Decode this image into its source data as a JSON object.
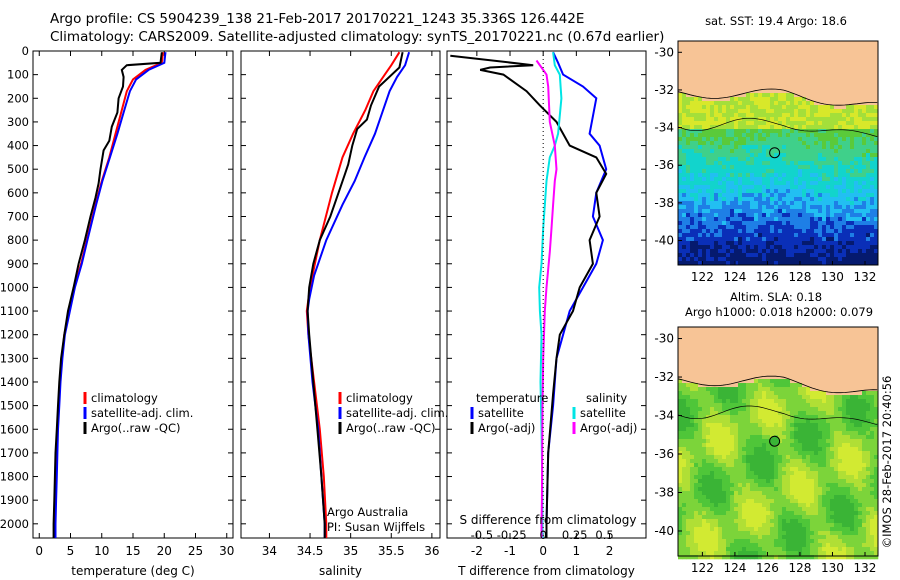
{
  "header": {
    "line1": "Argo profile: CS 5904239_138 21-Feb-2017 20170221_1243 35.336S 126.442E",
    "line2": "Climatology: CARS2009. Satellite-adjusted climatology: synTS_20170221.nc (0.67d earlier)"
  },
  "colors": {
    "climatology": "#ff0000",
    "satellite": "#0000ff",
    "argo": "#000000",
    "temperature_satellite": "#0000ff",
    "temperature_argo": "#000000",
    "salinity_satellite": "#00e5e5",
    "salinity_argo": "#ff00ff",
    "land": "#f7c496"
  },
  "chart_data": [
    {
      "type": "line",
      "id": "temperature",
      "xlabel": "temperature (deg C)",
      "xlim": [
        -1,
        31
      ],
      "ylim": [
        2060,
        0
      ],
      "xticks": [
        "0",
        "5",
        "10",
        "15",
        "20",
        "25",
        "30"
      ],
      "yticks": [
        "0",
        "100",
        "200",
        "300",
        "400",
        "500",
        "600",
        "700",
        "800",
        "900",
        "1000",
        "1100",
        "1200",
        "1300",
        "1400",
        "1500",
        "1600",
        "1700",
        "1800",
        "1900",
        "2000"
      ],
      "legend": [
        "climatology",
        "satellite-adj. clim.",
        "Argo(..raw -QC)"
      ],
      "series": [
        {
          "name": "climatology",
          "color": "#ff0000",
          "points": [
            [
              19.8,
              5
            ],
            [
              19.6,
              50
            ],
            [
              17,
              80
            ],
            [
              15,
              120
            ],
            [
              14,
              170
            ],
            [
              13.2,
              250
            ],
            [
              12.2,
              350
            ],
            [
              11.2,
              450
            ],
            [
              10,
              550
            ],
            [
              9,
              650
            ],
            [
              7.6,
              800
            ],
            [
              6.7,
              900
            ],
            [
              5.6,
              1000
            ],
            [
              4.8,
              1100
            ],
            [
              4,
              1200
            ],
            [
              3.6,
              1300
            ],
            [
              3.3,
              1400
            ],
            [
              3.1,
              1500
            ],
            [
              2.9,
              1600
            ],
            [
              2.8,
              1700
            ],
            [
              2.7,
              1800
            ],
            [
              2.6,
              1900
            ],
            [
              2.5,
              2000
            ],
            [
              2.5,
              2060
            ]
          ]
        },
        {
          "name": "satellite-adj. clim.",
          "color": "#0000ff",
          "points": [
            [
              20.2,
              5
            ],
            [
              20,
              50
            ],
            [
              17.5,
              80
            ],
            [
              15.5,
              120
            ],
            [
              14.5,
              170
            ],
            [
              13.6,
              250
            ],
            [
              12.5,
              350
            ],
            [
              11.3,
              450
            ],
            [
              10.1,
              550
            ],
            [
              9.1,
              650
            ],
            [
              7.7,
              800
            ],
            [
              6.8,
              900
            ],
            [
              5.7,
              1000
            ],
            [
              4.9,
              1100
            ],
            [
              4.1,
              1200
            ],
            [
              3.7,
              1300
            ],
            [
              3.4,
              1400
            ],
            [
              3.2,
              1500
            ],
            [
              3,
              1600
            ],
            [
              2.9,
              1700
            ],
            [
              2.8,
              1800
            ],
            [
              2.7,
              1900
            ],
            [
              2.6,
              2000
            ],
            [
              2.6,
              2060
            ]
          ]
        },
        {
          "name": "Argo(..raw -QC)",
          "color": "#000000",
          "points": [
            [
              19.6,
              5
            ],
            [
              19.4,
              50
            ],
            [
              14,
              60
            ],
            [
              13.2,
              80
            ],
            [
              13.5,
              110
            ],
            [
              13.4,
              150
            ],
            [
              12.7,
              200
            ],
            [
              12.5,
              260
            ],
            [
              11.6,
              320
            ],
            [
              11.2,
              380
            ],
            [
              10.3,
              420
            ],
            [
              9.8,
              500
            ],
            [
              9.5,
              560
            ],
            [
              9,
              620
            ],
            [
              8.2,
              700
            ],
            [
              7.3,
              800
            ],
            [
              6.3,
              900
            ],
            [
              5.5,
              1000
            ],
            [
              4.6,
              1100
            ],
            [
              4,
              1200
            ],
            [
              3.5,
              1300
            ],
            [
              3.2,
              1400
            ],
            [
              3,
              1500
            ],
            [
              2.8,
              1600
            ],
            [
              2.6,
              1700
            ],
            [
              2.5,
              1800
            ],
            [
              2.4,
              1900
            ],
            [
              2.3,
              2000
            ],
            [
              2.3,
              2060
            ]
          ]
        }
      ]
    },
    {
      "type": "line",
      "id": "salinity",
      "xlabel": "salinity",
      "xlim": [
        33.65,
        36.1
      ],
      "ylim": [
        2060,
        0
      ],
      "xticks": [
        "34",
        "34.5",
        "35",
        "35.5",
        "36"
      ],
      "legend": [
        "climatology",
        "satellite-adj. clim.",
        "Argo(..raw -QC)"
      ],
      "annotation": [
        "Argo Australia",
        "PI: Susan Wijffels"
      ],
      "series": [
        {
          "name": "climatology",
          "color": "#ff0000",
          "points": [
            [
              35.6,
              5
            ],
            [
              35.5,
              60
            ],
            [
              35.42,
              100
            ],
            [
              35.28,
              170
            ],
            [
              35.18,
              250
            ],
            [
              35.03,
              350
            ],
            [
              34.9,
              450
            ],
            [
              34.77,
              600
            ],
            [
              34.62,
              800
            ],
            [
              34.5,
              1000
            ],
            [
              34.46,
              1100
            ],
            [
              34.48,
              1200
            ],
            [
              34.55,
              1400
            ],
            [
              34.62,
              1600
            ],
            [
              34.67,
              1800
            ],
            [
              34.7,
              2000
            ],
            [
              34.7,
              2060
            ]
          ]
        },
        {
          "name": "satellite-adj. clim.",
          "color": "#0000ff",
          "points": [
            [
              35.72,
              5
            ],
            [
              35.67,
              60
            ],
            [
              35.57,
              110
            ],
            [
              35.48,
              170
            ],
            [
              35.4,
              250
            ],
            [
              35.3,
              350
            ],
            [
              35.17,
              450
            ],
            [
              35.05,
              550
            ],
            [
              34.9,
              650
            ],
            [
              34.7,
              800
            ],
            [
              34.55,
              950
            ],
            [
              34.49,
              1050
            ],
            [
              34.47,
              1100
            ],
            [
              34.48,
              1200
            ],
            [
              34.53,
              1400
            ],
            [
              34.6,
              1600
            ],
            [
              34.64,
              1800
            ],
            [
              34.68,
              2000
            ],
            [
              34.68,
              2060
            ]
          ]
        },
        {
          "name": "Argo(..raw -QC)",
          "color": "#000000",
          "points": [
            [
              35.64,
              5
            ],
            [
              35.6,
              70
            ],
            [
              35.35,
              150
            ],
            [
              35.25,
              230
            ],
            [
              35.2,
              290
            ],
            [
              35.08,
              330
            ],
            [
              35.02,
              400
            ],
            [
              34.97,
              480
            ],
            [
              34.93,
              520
            ],
            [
              34.85,
              600
            ],
            [
              34.75,
              700
            ],
            [
              34.62,
              800
            ],
            [
              34.54,
              900
            ],
            [
              34.49,
              1000
            ],
            [
              34.47,
              1100
            ],
            [
              34.49,
              1200
            ],
            [
              34.54,
              1400
            ],
            [
              34.59,
              1600
            ],
            [
              34.64,
              1800
            ],
            [
              34.68,
              2000
            ],
            [
              34.68,
              2060
            ]
          ]
        }
      ]
    },
    {
      "type": "line",
      "id": "differences",
      "xlabel": "T difference from climatology",
      "xlabel_top": "S difference from climatology",
      "xlim": [
        -2.9,
        3.1
      ],
      "ylim": [
        2060,
        0
      ],
      "xticks": [
        "-2",
        "-1",
        "0",
        "1",
        "2"
      ],
      "xticks_top": [
        "-0.5",
        "-0.25",
        "0",
        "0.25",
        "0.5"
      ],
      "legend_temperature": {
        "title": "temperature",
        "items": [
          "satellite",
          "Argo(-adj)"
        ]
      },
      "legend_salinity": {
        "title": "salinity",
        "items": [
          "satellite",
          "Argo(-adj)"
        ]
      },
      "series": [
        {
          "name": "temperature satellite",
          "color": "#0000ff",
          "points": [
            [
              0.3,
              5
            ],
            [
              0.45,
              50
            ],
            [
              0.6,
              100
            ],
            [
              1.2,
              150
            ],
            [
              1.6,
              200
            ],
            [
              1.4,
              350
            ],
            [
              1.7,
              400
            ],
            [
              1.9,
              500
            ],
            [
              1.6,
              600
            ],
            [
              1.5,
              700
            ],
            [
              1.8,
              800
            ],
            [
              1.6,
              900
            ],
            [
              1.2,
              1000
            ],
            [
              0.8,
              1100
            ],
            [
              0.6,
              1200
            ],
            [
              0.4,
              1300
            ],
            [
              0.3,
              1500
            ],
            [
              0.15,
              1700
            ],
            [
              0.1,
              2000
            ],
            [
              0.1,
              2060
            ]
          ]
        },
        {
          "name": "temperature Argo(-adj)",
          "color": "#000000",
          "points": [
            [
              -2.8,
              20
            ],
            [
              -0.3,
              60
            ],
            [
              -1.6,
              70
            ],
            [
              -1.9,
              80
            ],
            [
              -1.2,
              100
            ],
            [
              -0.5,
              170
            ],
            [
              -0.1,
              230
            ],
            [
              0.4,
              300
            ],
            [
              0.8,
              400
            ],
            [
              1.6,
              450
            ],
            [
              1.9,
              520
            ],
            [
              1.6,
              600
            ],
            [
              1.7,
              700
            ],
            [
              1.4,
              800
            ],
            [
              1.5,
              900
            ],
            [
              1.1,
              1000
            ],
            [
              0.9,
              1100
            ],
            [
              0.5,
              1200
            ],
            [
              0.4,
              1300
            ],
            [
              0.3,
              1450
            ],
            [
              0.15,
              1700
            ],
            [
              0.1,
              2000
            ],
            [
              0.1,
              2060
            ]
          ]
        },
        {
          "name": "salinity satellite",
          "color": "#00e5e5",
          "points": [
            [
              0.3,
              5
            ],
            [
              0.35,
              60
            ],
            [
              0.5,
              100
            ],
            [
              0.55,
              200
            ],
            [
              0.45,
              350
            ],
            [
              0.35,
              400
            ],
            [
              0.2,
              450
            ],
            [
              0.1,
              550
            ],
            [
              0,
              750
            ],
            [
              -0.05,
              900
            ],
            [
              -0.12,
              1000
            ],
            [
              -0.1,
              1100
            ],
            [
              -0.05,
              1200
            ],
            [
              -0.08,
              1400
            ],
            [
              -0.05,
              1600
            ],
            [
              -0.03,
              1800
            ],
            [
              -0.02,
              2000
            ],
            [
              -0.02,
              2060
            ]
          ]
        },
        {
          "name": "salinity Argo(-adj)",
          "color": "#ff00ff",
          "points": [
            [
              -0.2,
              40
            ],
            [
              -0.05,
              70
            ],
            [
              0.1,
              100
            ],
            [
              0.15,
              150
            ],
            [
              0.2,
              300
            ],
            [
              0.35,
              400
            ],
            [
              0.4,
              500
            ],
            [
              0.35,
              550
            ],
            [
              0.3,
              650
            ],
            [
              0.25,
              750
            ],
            [
              0.2,
              850
            ],
            [
              0.1,
              1000
            ],
            [
              0.05,
              1100
            ],
            [
              0,
              1300
            ],
            [
              -0.02,
              1500
            ],
            [
              -0.03,
              1700
            ],
            [
              -0.04,
              1900
            ],
            [
              -0.05,
              2000
            ],
            [
              -0.05,
              2060
            ]
          ]
        }
      ]
    },
    {
      "type": "heatmap",
      "id": "sst_map",
      "title": "sat. SST: 19.4  Argo: 18.6",
      "xlim": [
        120.5,
        132.8
      ],
      "ylim": [
        -41.3,
        -29.4
      ],
      "xticks": [
        "122",
        "124",
        "126",
        "128",
        "130",
        "132"
      ],
      "yticks": [
        "-30",
        "-32",
        "-34",
        "-36",
        "-38",
        "-40"
      ],
      "marker": {
        "lon": 126.442,
        "lat": -35.336
      },
      "colors": [
        "#f7c496",
        "#5aca3a",
        "#3fd08a",
        "#12d4cc",
        "#22bff2",
        "#1e7fe6",
        "#0a2fb8",
        "#051a6e",
        "#d8e82a",
        "#a4df3a"
      ]
    },
    {
      "type": "heatmap",
      "id": "sla_map",
      "title": "Altim. SLA: 0.18",
      "subtitle": "Argo h1000: 0.018 h2000: 0.079",
      "xlim": [
        120.5,
        132.8
      ],
      "ylim": [
        -41.3,
        -29.4
      ],
      "xticks": [
        "122",
        "124",
        "126",
        "128",
        "130",
        "132"
      ],
      "yticks": [
        "-30",
        "-32",
        "-34",
        "-36",
        "-38",
        "-40"
      ],
      "marker": {
        "lon": 126.442,
        "lat": -35.336
      },
      "colors": [
        "#f7c496",
        "#d2ea32",
        "#b0df35",
        "#7cd43a",
        "#4fc639",
        "#3ab436"
      ]
    }
  ],
  "footer": {
    "stamp": "©IMOS 28-Feb-2017 20:40:56"
  }
}
